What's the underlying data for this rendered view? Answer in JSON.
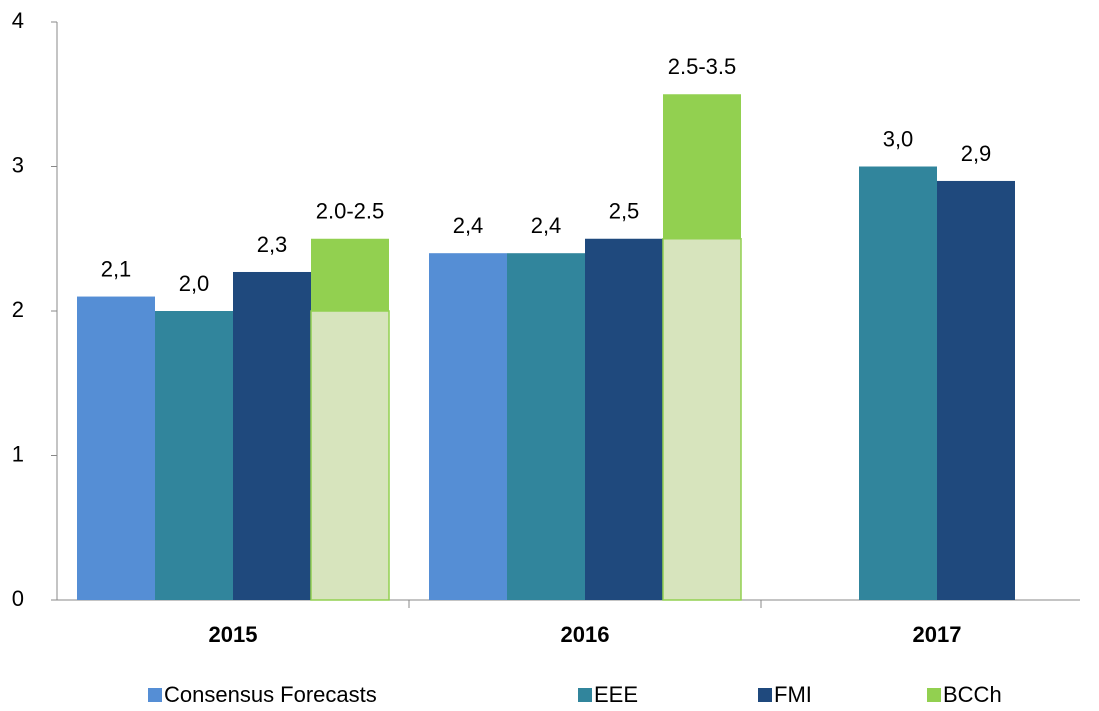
{
  "chart_data": {
    "type": "bar",
    "categories": [
      "2015",
      "2016",
      "2017"
    ],
    "series": [
      {
        "name": "Consensus Forecasts",
        "color": "#558ed5",
        "values": [
          2.1,
          2.4,
          null
        ],
        "value_labels": [
          "2,1",
          "2,4",
          null
        ]
      },
      {
        "name": "EEE",
        "color": "#31859c",
        "values": [
          2.0,
          2.4,
          3.0
        ],
        "value_labels": [
          "2,0",
          "2,4",
          "3,0"
        ]
      },
      {
        "name": "FMI",
        "color": "#1f497d",
        "values": [
          2.27,
          2.5,
          2.9
        ],
        "value_labels": [
          "2,3",
          "2,5",
          "2,9"
        ]
      },
      {
        "name": "BCCh",
        "color": "#92d050",
        "low_color": "#d7e4bd",
        "low": [
          2.0,
          2.5,
          null
        ],
        "values": [
          2.5,
          3.5,
          null
        ],
        "value_labels": [
          "2.0-2.5",
          "2.5-3.5",
          null
        ]
      }
    ],
    "ylim": [
      0,
      4
    ],
    "yticks": [
      0,
      1,
      2,
      3,
      4
    ],
    "grid": false,
    "legend": "bottom"
  }
}
